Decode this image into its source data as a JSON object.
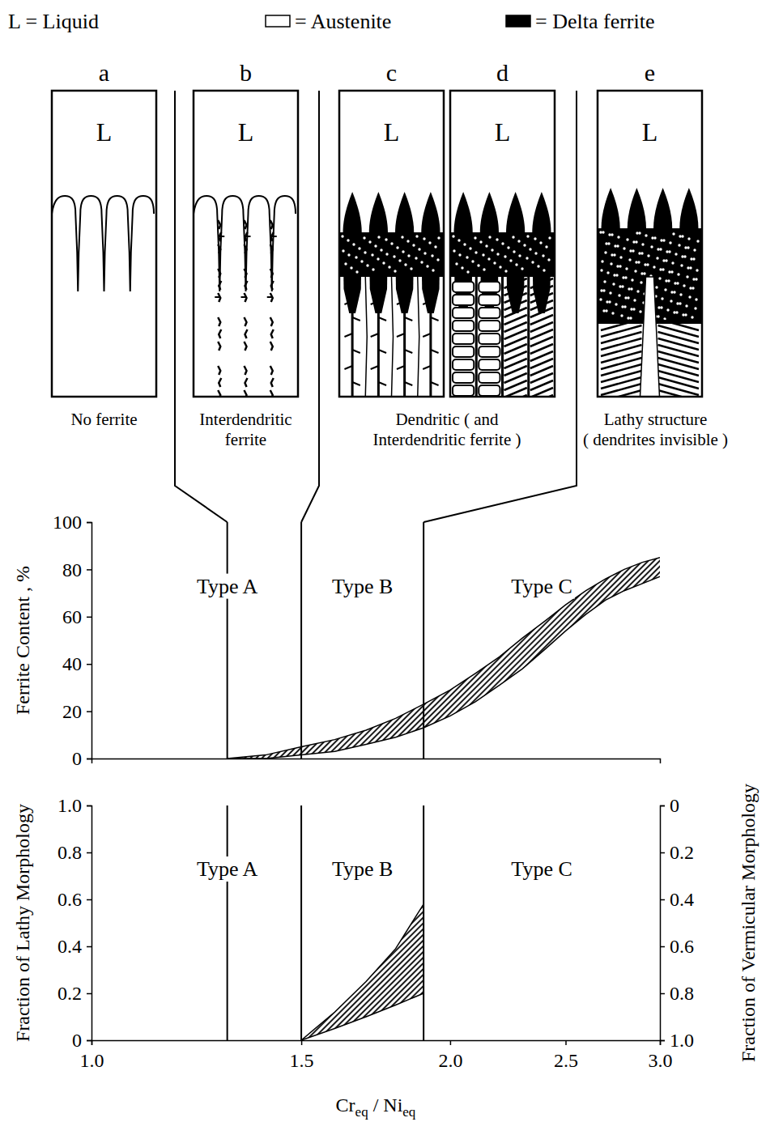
{
  "diagram": {
    "legend": [
      {
        "label": "L = Liquid"
      },
      {
        "label": "= Austenite",
        "color": "#ffffff"
      },
      {
        "label": "= Delta ferrite",
        "color": "#000000"
      }
    ],
    "panels": [
      {
        "letter": "a",
        "label": "L"
      },
      {
        "letter": "b",
        "label": "L"
      },
      {
        "letter": "c",
        "label": "L"
      },
      {
        "letter": "d",
        "label": "L"
      },
      {
        "letter": "e",
        "label": "L"
      }
    ],
    "captions": [
      {
        "text": "No ferrite",
        "under": [
          "a"
        ]
      },
      {
        "text": "Interdendritic ferrite",
        "under": [
          "b"
        ]
      },
      {
        "text": "Dendritic ( and Interdendritic ferrite )",
        "under": [
          "c",
          "d"
        ]
      },
      {
        "text": "Lathy structure ( dendrites invisible )",
        "under": [
          "e"
        ]
      }
    ]
  },
  "chart_data": [
    {
      "type": "area",
      "ylabel": "Ferrite Content , %",
      "xlim": [
        1,
        3
      ],
      "log": "x",
      "ylim": [
        0,
        100
      ],
      "yticks": [
        0,
        20,
        40,
        60,
        80,
        100
      ],
      "tick_labels": "y",
      "boundaries": [
        1.3,
        1.5,
        1.9
      ],
      "regions": [
        "Type A",
        "Type B",
        "Type C"
      ],
      "x": [
        1.3,
        1.4,
        1.5,
        1.6,
        1.7,
        1.8,
        1.9,
        2.0,
        2.1,
        2.2,
        2.3,
        2.4,
        2.5,
        2.6,
        2.7,
        2.8,
        2.9,
        3.0
      ],
      "lower": [
        0,
        0,
        1.5,
        3,
        6,
        9,
        13,
        18,
        24,
        31,
        38,
        46,
        54,
        61,
        67,
        71,
        74,
        77
      ],
      "upper": [
        0,
        1.5,
        5,
        8,
        12,
        17,
        23,
        29,
        36,
        43,
        51,
        58,
        65,
        71,
        76,
        80,
        83,
        85
      ]
    },
    {
      "type": "area",
      "ylabel": "Fraction of Lathy Morphology",
      "y2label": "Fraction of Vermicular Morphology",
      "xlabel": [
        "Cr",
        "eq",
        " / Ni",
        "eq"
      ],
      "xlim": [
        1,
        3
      ],
      "log": "x",
      "xticks": [
        {
          "value": 1,
          "label": "1.0"
        },
        1.5,
        {
          "value": 2,
          "label": "2.0"
        },
        2.5,
        {
          "value": 3,
          "label": "3.0"
        }
      ],
      "ylim": [
        0,
        1
      ],
      "yticks": [
        0,
        0.2,
        0.4,
        0.6,
        0.8,
        {
          "value": 1,
          "label": "1.0"
        }
      ],
      "y2lim": [
        1,
        0
      ],
      "y2ticks": [
        0,
        0.2,
        0.4,
        0.6,
        0.8,
        {
          "value": 1,
          "label": "1.0"
        }
      ],
      "boundaries": [
        1.3,
        1.5,
        1.9
      ],
      "regions": [
        "Type A",
        "Type B",
        "Type C"
      ],
      "x": [
        1.5,
        1.6,
        1.7,
        1.8,
        1.9
      ],
      "lower": [
        0,
        0.05,
        0.1,
        0.15,
        0.2
      ],
      "upper": [
        0,
        0.12,
        0.25,
        0.39,
        0.58
      ]
    }
  ]
}
